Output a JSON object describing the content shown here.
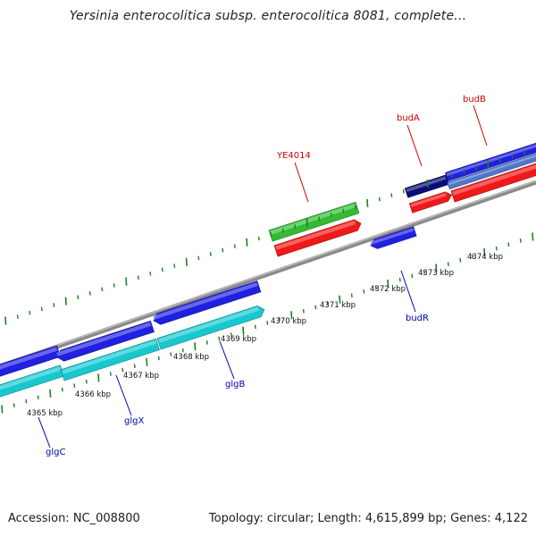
{
  "title": "Yersinia enterocolitica subsp. enterocolitica 8081, complete...",
  "footer": {
    "accession": "Accession: NC_008800",
    "summary": "Topology: circular; Length: 4,615,899 bp; Genes: 4,122"
  },
  "colors": {
    "backbone": "#8a8a8a",
    "tick": "#1f7f1f",
    "forward_cds": "#2020e0",
    "forward_cds_dark": "#0b0b7a",
    "forward_cds_light": "#4f78c8",
    "reverse_cds": "#18c8cf",
    "rna": "#f01818",
    "other_gene": "#33bb33",
    "label_blue": "#0000aa",
    "label_red": "#cc0000"
  },
  "ticks": [
    {
      "label": "4365 kbp"
    },
    {
      "label": "4366 kbp"
    },
    {
      "label": "4367 kbp"
    },
    {
      "label": "4368 kbp"
    },
    {
      "label": "4369 kbp"
    },
    {
      "label": "4370 kbp"
    },
    {
      "label": "4371 kbp"
    },
    {
      "label": "4372 kbp"
    },
    {
      "label": "4373 kbp"
    },
    {
      "label": "4374 kbp"
    }
  ],
  "genes": [
    {
      "name": "glgC",
      "color_role": "label_blue"
    },
    {
      "name": "glgX",
      "color_role": "label_blue"
    },
    {
      "name": "glgB",
      "color_role": "label_blue"
    },
    {
      "name": "YE4014",
      "color_role": "label_red"
    },
    {
      "name": "budA",
      "color_role": "label_red"
    },
    {
      "name": "budB",
      "color_role": "label_red"
    },
    {
      "name": "budR",
      "color_role": "label_blue"
    }
  ]
}
